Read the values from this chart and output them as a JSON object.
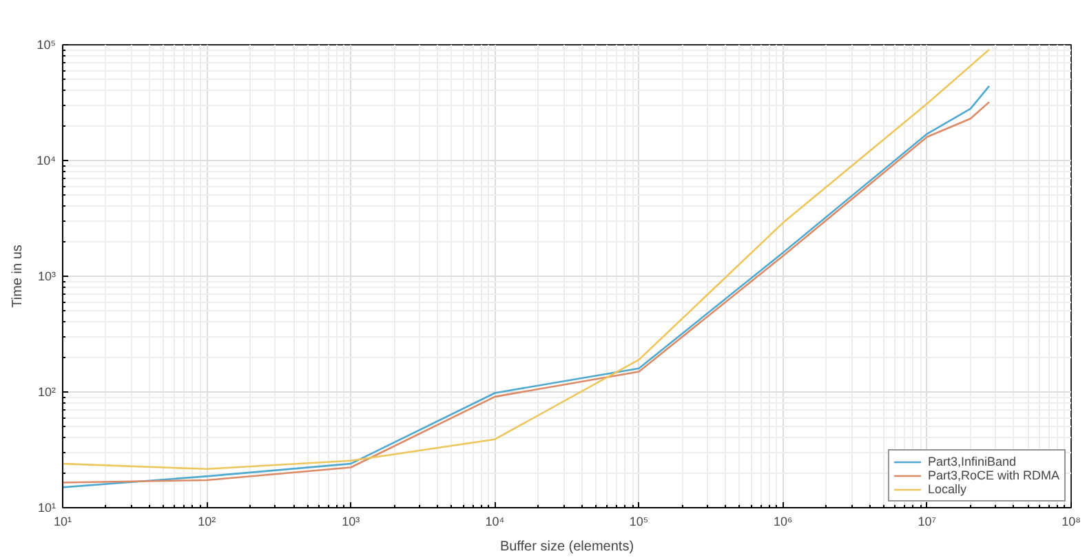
{
  "chart_data": {
    "type": "line",
    "xlabel": "Buffer size (elements)",
    "ylabel": "Time in us",
    "x": [
      10,
      100,
      1000,
      10000,
      100000,
      1000000,
      10000000,
      20000000,
      27000000
    ],
    "series": [
      {
        "name": "Part3,InfiniBand",
        "color": "#4fa8d0",
        "values": [
          15,
          18.7,
          24,
          98,
          160,
          1600,
          17000,
          28000,
          44000
        ]
      },
      {
        "name": "Part3,RoCE with RDMA",
        "color": "#dc8a66",
        "values": [
          16.5,
          17.3,
          22.3,
          91,
          150,
          1500,
          16000,
          23000,
          32000
        ]
      },
      {
        "name": "Locally",
        "color": "#ecc65a",
        "values": [
          24,
          21.6,
          25.5,
          39,
          190,
          2900,
          31000,
          null,
          91000
        ]
      }
    ],
    "log": "xy",
    "grid": true,
    "legend": "bottom right",
    "line_style": "solid",
    "marker": "none",
    "xlim": [
      10,
      100000000
    ],
    "ylim": [
      10,
      100000
    ],
    "xticks": [
      {
        "value": 10,
        "label": "10¹"
      },
      {
        "value": 100,
        "label": "10²"
      },
      {
        "value": 1000,
        "label": "10³"
      },
      {
        "value": 10000,
        "label": "10⁴"
      },
      {
        "value": 100000,
        "label": "10⁵"
      },
      {
        "value": 1000000,
        "label": "10⁶"
      },
      {
        "value": 10000000,
        "label": "10⁷"
      },
      {
        "value": 100000000,
        "label": "10⁸"
      }
    ],
    "yticks": [
      {
        "value": 10,
        "label": "10¹"
      },
      {
        "value": 100,
        "label": "10²"
      },
      {
        "value": 1000,
        "label": "10³"
      },
      {
        "value": 10000,
        "label": "10⁴"
      },
      {
        "value": 100000,
        "label": "10⁵"
      }
    ]
  }
}
